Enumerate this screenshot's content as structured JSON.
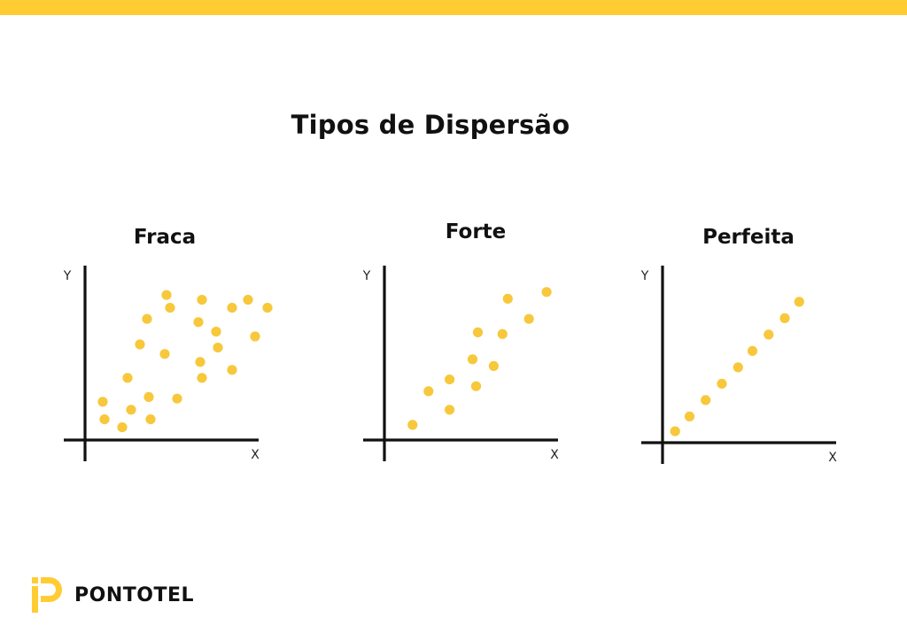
{
  "header": {
    "accent_color": "#FFCC33"
  },
  "page_title": "Tipos de Dispersão",
  "brand": {
    "name": "PONTOTEL",
    "color": "#FFCC33"
  },
  "point_color": "#F7C83B",
  "chart_data": [
    {
      "type": "scatter",
      "title": "Fraca",
      "xlabel": "X",
      "ylabel": "Y",
      "xlim": [
        0,
        10
      ],
      "ylim": [
        0,
        10
      ],
      "grid": false,
      "points": [
        [
          1.0,
          2.4
        ],
        [
          1.1,
          1.3
        ],
        [
          2.1,
          0.8
        ],
        [
          2.6,
          1.9
        ],
        [
          2.4,
          3.9
        ],
        [
          3.1,
          6.0
        ],
        [
          3.5,
          7.6
        ],
        [
          3.6,
          2.7
        ],
        [
          3.7,
          1.3
        ],
        [
          4.5,
          5.4
        ],
        [
          4.6,
          9.1
        ],
        [
          4.8,
          8.3
        ],
        [
          5.2,
          2.6
        ],
        [
          6.4,
          7.4
        ],
        [
          6.5,
          4.9
        ],
        [
          6.6,
          3.9
        ],
        [
          6.6,
          8.8
        ],
        [
          7.4,
          6.8
        ],
        [
          7.5,
          5.8
        ],
        [
          8.3,
          8.3
        ],
        [
          8.3,
          4.4
        ],
        [
          9.2,
          8.8
        ],
        [
          9.6,
          6.5
        ],
        [
          10.3,
          8.3
        ]
      ]
    },
    {
      "type": "scatter",
      "title": "Forte",
      "xlabel": "X",
      "ylabel": "Y",
      "xlim": [
        0,
        10
      ],
      "ylim": [
        0,
        10
      ],
      "grid": false,
      "points": [
        [
          1.6,
          0.9
        ],
        [
          2.5,
          2.9
        ],
        [
          3.7,
          1.8
        ],
        [
          3.7,
          3.6
        ],
        [
          5.0,
          4.8
        ],
        [
          5.2,
          3.2
        ],
        [
          5.3,
          6.4
        ],
        [
          6.2,
          4.4
        ],
        [
          6.7,
          6.3
        ],
        [
          7.0,
          8.4
        ],
        [
          8.2,
          7.2
        ],
        [
          9.2,
          8.8
        ]
      ]
    },
    {
      "type": "scatter",
      "title": "Perfeita",
      "xlabel": "X",
      "ylabel": "Y",
      "xlim": [
        0,
        10
      ],
      "ylim": [
        0,
        10
      ],
      "grid": false,
      "points": [
        [
          0.7,
          0.7
        ],
        [
          1.5,
          1.6
        ],
        [
          2.4,
          2.6
        ],
        [
          3.3,
          3.6
        ],
        [
          4.2,
          4.6
        ],
        [
          5.0,
          5.6
        ],
        [
          5.9,
          6.6
        ],
        [
          6.8,
          7.6
        ],
        [
          7.6,
          8.6
        ]
      ]
    }
  ]
}
